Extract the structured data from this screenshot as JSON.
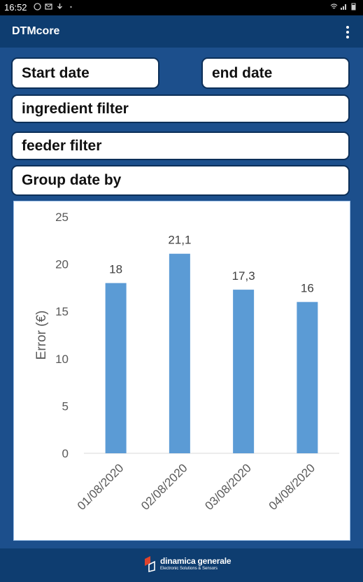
{
  "status_bar": {
    "time": "16:52",
    "left_icons": [
      "app-notification-icon",
      "mail-icon",
      "download-icon",
      "dot-icon"
    ],
    "right_icons": [
      "wifi-icon",
      "signal-icon",
      "battery-icon"
    ]
  },
  "app_bar": {
    "title": "DTMcore",
    "menu_icon": "more-vert-icon"
  },
  "filters": {
    "start_date": "Start date",
    "end_date": "end date",
    "ingredient_filter": "ingredient filter",
    "feeder_filter": "feeder filter",
    "group_date_by": "Group date by"
  },
  "chart_data": {
    "type": "bar",
    "categories": [
      "01/08/2020",
      "02/08/2020",
      "03/08/2020",
      "04/08/2020"
    ],
    "values": [
      18,
      21.1,
      17.3,
      16
    ],
    "data_labels": [
      "18",
      "21,1",
      "17,3",
      "16"
    ],
    "ylabel": "Error (€)",
    "ylim": [
      0,
      25
    ],
    "yticks": [
      "0",
      "5",
      "10",
      "15",
      "20",
      "25"
    ],
    "bar_color": "#5b9bd5",
    "grid": false
  },
  "footer": {
    "logo_brand": "dinamica generale",
    "logo_tagline": "Electronic Solutions & Sensors"
  },
  "colors": {
    "background": "#1c4f8c",
    "app_bar": "#0e3d70",
    "bar": "#5b9bd5"
  }
}
